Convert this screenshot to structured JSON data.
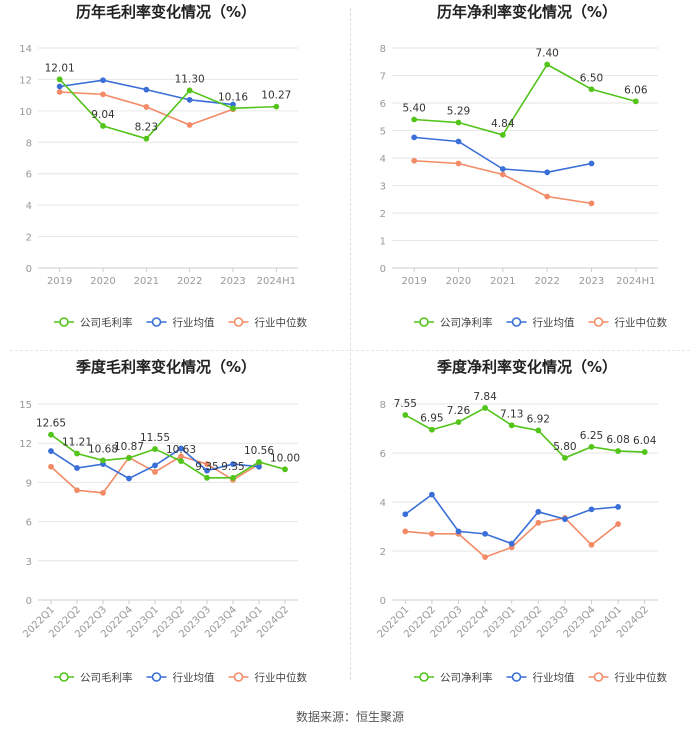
{
  "source_label": "数据来源：恒生聚源",
  "colors": {
    "company": "#52c41a",
    "industry_avg": "#3a6fd8",
    "industry_median": "#f28b66",
    "axis_text": "#999999",
    "grid": "#e6e6e6",
    "title": "#222222"
  },
  "chart_data": [
    {
      "id": "annual-gross",
      "type": "line",
      "title": "历年毛利率变化情况（%）",
      "categories": [
        "2019",
        "2020",
        "2021",
        "2022",
        "2023",
        "2024H1"
      ],
      "ylim": [
        0,
        14
      ],
      "yticks": [
        0,
        2,
        4,
        6,
        8,
        10,
        12,
        14
      ],
      "series": [
        {
          "key": "company",
          "name": "公司毛利率",
          "values": [
            12.01,
            9.04,
            8.23,
            11.3,
            10.16,
            10.27
          ],
          "labels": [
            "12.01",
            "9.04",
            "8.23",
            "11.30",
            "10.16",
            "10.27"
          ]
        },
        {
          "key": "industry_avg",
          "name": "行业均值",
          "values": [
            11.55,
            11.95,
            11.35,
            10.7,
            10.4,
            null
          ]
        },
        {
          "key": "industry_median",
          "name": "行业中位数",
          "values": [
            11.2,
            11.05,
            10.25,
            9.1,
            10.1,
            null
          ]
        }
      ]
    },
    {
      "id": "annual-net",
      "type": "line",
      "title": "历年净利率变化情况（%）",
      "categories": [
        "2019",
        "2020",
        "2021",
        "2022",
        "2023",
        "2024H1"
      ],
      "ylim": [
        0,
        8
      ],
      "yticks": [
        0,
        1,
        2,
        3,
        4,
        5,
        6,
        7,
        8
      ],
      "series": [
        {
          "key": "company",
          "name": "公司净利率",
          "values": [
            5.4,
            5.29,
            4.84,
            7.4,
            6.5,
            6.06
          ],
          "labels": [
            "5.40",
            "5.29",
            "4.84",
            "7.40",
            "6.50",
            "6.06"
          ]
        },
        {
          "key": "industry_avg",
          "name": "行业均值",
          "values": [
            4.75,
            4.6,
            3.6,
            3.48,
            3.8,
            null
          ]
        },
        {
          "key": "industry_median",
          "name": "行业中位数",
          "values": [
            3.9,
            3.8,
            3.4,
            2.6,
            2.35,
            null
          ]
        }
      ]
    },
    {
      "id": "quarterly-gross",
      "type": "line",
      "title": "季度毛利率变化情况（%）",
      "categories": [
        "2022Q1",
        "2022Q2",
        "2022Q3",
        "2022Q4",
        "2023Q1",
        "2023Q2",
        "2023Q3",
        "2023Q4",
        "2024Q1",
        "2024Q2"
      ],
      "ylim": [
        0,
        15
      ],
      "yticks": [
        0,
        3,
        6,
        9,
        12,
        15
      ],
      "series": [
        {
          "key": "company",
          "name": "公司毛利率",
          "values": [
            12.65,
            11.21,
            10.68,
            10.87,
            11.55,
            10.63,
            9.35,
            9.35,
            10.56,
            10.0
          ],
          "labels": [
            "12.65",
            "11.21",
            "10.68",
            "10.87",
            "11.55",
            "10.63",
            "9.35",
            "9.35",
            "10.56",
            "10.00"
          ]
        },
        {
          "key": "industry_avg",
          "name": "行业均值",
          "values": [
            11.4,
            10.1,
            10.4,
            9.3,
            10.3,
            11.6,
            9.9,
            10.4,
            10.2,
            null
          ]
        },
        {
          "key": "industry_median",
          "name": "行业中位数",
          "values": [
            10.2,
            8.4,
            8.2,
            10.9,
            9.8,
            11.0,
            10.4,
            9.2,
            10.4,
            null
          ]
        }
      ]
    },
    {
      "id": "quarterly-net",
      "type": "line",
      "title": "季度净利率变化情况（%）",
      "categories": [
        "2022Q1",
        "2022Q2",
        "2022Q3",
        "2022Q4",
        "2023Q1",
        "2023Q2",
        "2023Q3",
        "2023Q4",
        "2024Q1",
        "2024Q2"
      ],
      "ylim": [
        0,
        8
      ],
      "yticks": [
        0,
        2,
        4,
        6,
        8
      ],
      "series": [
        {
          "key": "company",
          "name": "公司净利率",
          "values": [
            7.55,
            6.95,
            7.26,
            7.84,
            7.13,
            6.92,
            5.8,
            6.25,
            6.08,
            6.04
          ],
          "labels": [
            "7.55",
            "6.95",
            "7.26",
            "7.84",
            "7.13",
            "6.92",
            "5.80",
            "6.25",
            "6.08",
            "6.04"
          ]
        },
        {
          "key": "industry_avg",
          "name": "行业均值",
          "values": [
            3.5,
            4.3,
            2.8,
            2.7,
            2.3,
            3.6,
            3.3,
            3.7,
            3.8,
            null
          ]
        },
        {
          "key": "industry_median",
          "name": "行业中位数",
          "values": [
            2.8,
            2.7,
            2.7,
            1.75,
            2.15,
            3.15,
            3.35,
            2.25,
            3.1,
            null
          ]
        }
      ]
    }
  ]
}
